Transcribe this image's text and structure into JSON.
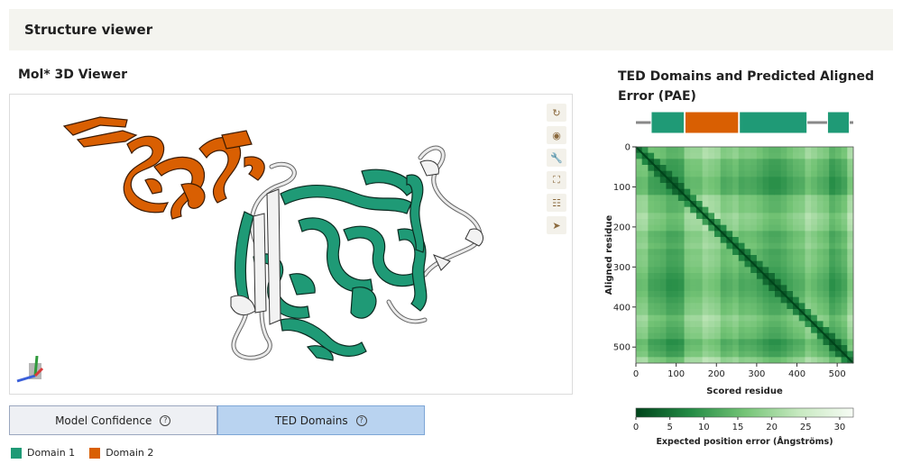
{
  "header": {
    "title": "Structure viewer"
  },
  "viewer": {
    "title": "Mol* 3D Viewer",
    "tools": [
      {
        "name": "reset-view-icon",
        "glyph": "↻"
      },
      {
        "name": "screenshot-icon",
        "glyph": "◉"
      },
      {
        "name": "settings-wrench-icon",
        "glyph": "🔧"
      },
      {
        "name": "fullscreen-icon",
        "glyph": "⛶"
      },
      {
        "name": "adjust-sliders-icon",
        "glyph": "☷"
      },
      {
        "name": "select-pointer-icon",
        "glyph": "➤"
      }
    ]
  },
  "modes": {
    "model_confidence": "Model Confidence",
    "ted_domains": "TED Domains",
    "active": "ted_domains"
  },
  "legend": {
    "items": [
      {
        "label": "Domain 1",
        "color": "#1f9a76"
      },
      {
        "label": "Domain 2",
        "color": "#d95f02"
      }
    ]
  },
  "colors": {
    "domain1": "#1f9a76",
    "domain2": "#d95f02",
    "linker": "#888888"
  },
  "pae": {
    "title": "TED Domains and Predicted Aligned Error (PAE)",
    "domain_track": {
      "total_residues": 540,
      "segments": [
        {
          "domain": 1,
          "start": 38,
          "end": 120
        },
        {
          "domain": 2,
          "start": 122,
          "end": 255
        },
        {
          "domain": 1,
          "start": 257,
          "end": 425
        },
        {
          "domain": 1,
          "start": 476,
          "end": 530
        }
      ]
    },
    "chart_data": {
      "type": "heatmap",
      "xlabel": "Scored residue",
      "ylabel": "Aligned residue",
      "xlim": [
        0,
        540
      ],
      "ylim": [
        0,
        540
      ],
      "x_ticks": [
        "0",
        "100",
        "200",
        "300",
        "400",
        "500"
      ],
      "y_ticks": [
        "0",
        "100",
        "200",
        "300",
        "400",
        "500"
      ],
      "colorbar": {
        "label": "Expected position error (Ångströms)",
        "ticks": [
          "0",
          "5",
          "10",
          "15",
          "20",
          "25",
          "30"
        ],
        "range": [
          0,
          32
        ],
        "colors": [
          "#00441b",
          "#238b45",
          "#74c476",
          "#c7e9c0",
          "#f7fcf5"
        ]
      }
    }
  }
}
